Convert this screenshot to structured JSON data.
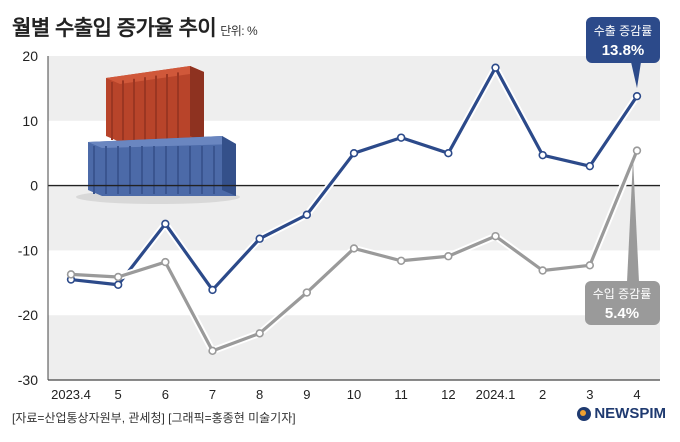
{
  "title": "월별 수출입 증가율 추이",
  "unit": "단위: %",
  "source": "[자료=산업통상자원부, 관세청] [그래픽=홍종현 미술기자]",
  "logo": "NEWSPIM",
  "colors": {
    "export": "#2c4a8a",
    "import": "#9a9a9a",
    "band": "#eeeeee",
    "callout_export": "#2c4a8a",
    "callout_import": "#9a9a9a"
  },
  "chart_data": {
    "type": "line",
    "categories": [
      "2023.4",
      "5",
      "6",
      "7",
      "8",
      "9",
      "10",
      "11",
      "12",
      "2024.1",
      "2",
      "3",
      "4"
    ],
    "ylim": [
      -30,
      20
    ],
    "yticks": [
      -30,
      -20,
      -10,
      0,
      10,
      20
    ],
    "series": [
      {
        "name": "수출 증감률",
        "values": [
          -14.5,
          -15.3,
          -5.9,
          -16.1,
          -8.2,
          -4.5,
          5.0,
          7.4,
          5.0,
          18.2,
          4.7,
          3.0,
          13.8
        ]
      },
      {
        "name": "수입 증감률",
        "values": [
          -13.7,
          -14.1,
          -11.8,
          -25.5,
          -22.8,
          -16.5,
          -9.7,
          -11.6,
          -10.9,
          -7.8,
          -13.1,
          -12.3,
          5.4
        ]
      }
    ],
    "callouts": [
      {
        "label": "수출 증감률",
        "value": "13.8%"
      },
      {
        "label": "수입 증감률",
        "value": "5.4%"
      }
    ]
  }
}
